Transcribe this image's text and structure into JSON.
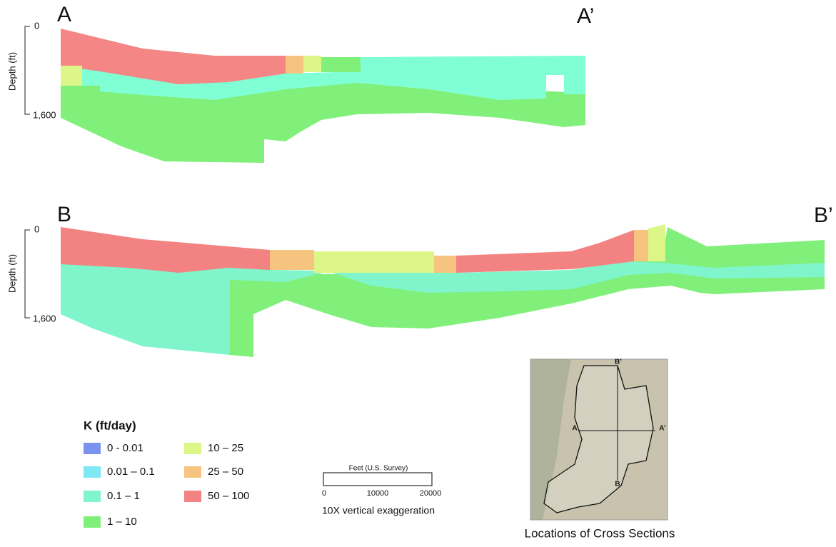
{
  "sections": [
    {
      "label_left": "A",
      "label_right": "A’",
      "axis_title": "Depth (ft)",
      "ticks": [
        "0",
        "1,600"
      ]
    },
    {
      "label_left": "B",
      "label_right": "B’",
      "axis_title": "Depth (ft)",
      "ticks": [
        "0",
        "1,600"
      ]
    }
  ],
  "legend": {
    "title": "K (ft/day)",
    "items": [
      {
        "label": "0 - 0.01",
        "color": "#7b93ee"
      },
      {
        "label": "0.01 – 0.1",
        "color": "#80e8f2"
      },
      {
        "label": "0.1 – 1",
        "color": "#80f5cc"
      },
      {
        "label": "1 – 10",
        "color": "#80f07a"
      },
      {
        "label": "10 – 25",
        "color": "#dcf788"
      },
      {
        "label": "25 – 50",
        "color": "#f6c47e"
      },
      {
        "label": "50 – 100",
        "color": "#f38383"
      }
    ]
  },
  "scale_bar": {
    "title": "Feet (U.S. Survey)",
    "ticks": [
      "0",
      "10000",
      "20000"
    ],
    "note": "10X vertical exaggeration"
  },
  "map": {
    "labels": [
      "A",
      "A’",
      "B",
      "B’"
    ],
    "caption": "Locations of Cross Sections"
  }
}
